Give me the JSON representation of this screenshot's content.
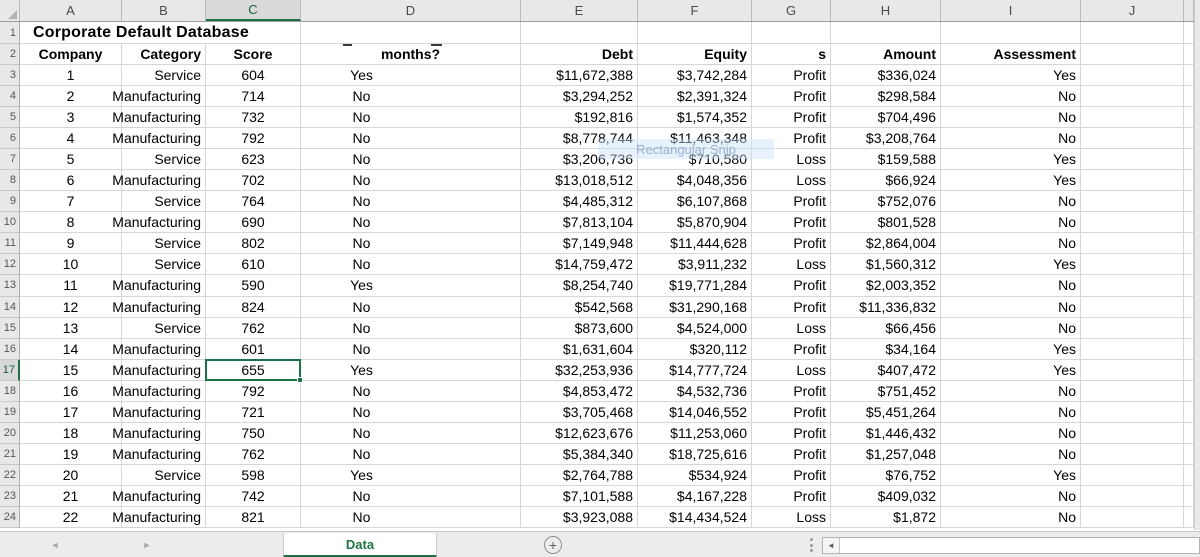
{
  "sheet_title": "Corporate Default Database",
  "column_letters": [
    "A",
    "B",
    "C",
    "D",
    "E",
    "F",
    "G",
    "H",
    "I",
    "J",
    ""
  ],
  "header_row": {
    "company": "Company",
    "category": "Category",
    "score": "Score",
    "months": "months?",
    "debt": "Debt",
    "equity": "Equity",
    "profit_loss": "s",
    "amount": "Amount",
    "assessment": "Assessment"
  },
  "rows": [
    {
      "company": "1",
      "category": "Service",
      "score": "604",
      "months": "Yes",
      "debt": "$11,672,388",
      "equity": "$3,742,284",
      "pl": "Profit",
      "amount": "$336,024",
      "assessment": "Yes"
    },
    {
      "company": "2",
      "category": "Manufacturing",
      "score": "714",
      "months": "No",
      "debt": "$3,294,252",
      "equity": "$2,391,324",
      "pl": "Profit",
      "amount": "$298,584",
      "assessment": "No"
    },
    {
      "company": "3",
      "category": "Manufacturing",
      "score": "732",
      "months": "No",
      "debt": "$192,816",
      "equity": "$1,574,352",
      "pl": "Profit",
      "amount": "$704,496",
      "assessment": "No"
    },
    {
      "company": "4",
      "category": "Manufacturing",
      "score": "792",
      "months": "No",
      "debt": "$8,778,744",
      "equity": "$11,463,348",
      "pl": "Profit",
      "amount": "$3,208,764",
      "assessment": "No"
    },
    {
      "company": "5",
      "category": "Service",
      "score": "623",
      "months": "No",
      "debt": "$3,206,736",
      "equity": "$710,580",
      "pl": "Loss",
      "amount": "$159,588",
      "assessment": "Yes"
    },
    {
      "company": "6",
      "category": "Manufacturing",
      "score": "702",
      "months": "No",
      "debt": "$13,018,512",
      "equity": "$4,048,356",
      "pl": "Loss",
      "amount": "$66,924",
      "assessment": "Yes"
    },
    {
      "company": "7",
      "category": "Service",
      "score": "764",
      "months": "No",
      "debt": "$4,485,312",
      "equity": "$6,107,868",
      "pl": "Profit",
      "amount": "$752,076",
      "assessment": "No"
    },
    {
      "company": "8",
      "category": "Manufacturing",
      "score": "690",
      "months": "No",
      "debt": "$7,813,104",
      "equity": "$5,870,904",
      "pl": "Profit",
      "amount": "$801,528",
      "assessment": "No"
    },
    {
      "company": "9",
      "category": "Service",
      "score": "802",
      "months": "No",
      "debt": "$7,149,948",
      "equity": "$11,444,628",
      "pl": "Profit",
      "amount": "$2,864,004",
      "assessment": "No"
    },
    {
      "company": "10",
      "category": "Service",
      "score": "610",
      "months": "No",
      "debt": "$14,759,472",
      "equity": "$3,911,232",
      "pl": "Loss",
      "amount": "$1,560,312",
      "assessment": "Yes"
    },
    {
      "company": "11",
      "category": "Manufacturing",
      "score": "590",
      "months": "Yes",
      "debt": "$8,254,740",
      "equity": "$19,771,284",
      "pl": "Profit",
      "amount": "$2,003,352",
      "assessment": "No"
    },
    {
      "company": "12",
      "category": "Manufacturing",
      "score": "824",
      "months": "No",
      "debt": "$542,568",
      "equity": "$31,290,168",
      "pl": "Profit",
      "amount": "$11,336,832",
      "assessment": "No"
    },
    {
      "company": "13",
      "category": "Service",
      "score": "762",
      "months": "No",
      "debt": "$873,600",
      "equity": "$4,524,000",
      "pl": "Loss",
      "amount": "$66,456",
      "assessment": "No"
    },
    {
      "company": "14",
      "category": "Manufacturing",
      "score": "601",
      "months": "No",
      "debt": "$1,631,604",
      "equity": "$320,112",
      "pl": "Profit",
      "amount": "$34,164",
      "assessment": "Yes"
    },
    {
      "company": "15",
      "category": "Manufacturing",
      "score": "655",
      "months": "Yes",
      "debt": "$32,253,936",
      "equity": "$14,777,724",
      "pl": "Loss",
      "amount": "$407,472",
      "assessment": "Yes"
    },
    {
      "company": "16",
      "category": "Manufacturing",
      "score": "792",
      "months": "No",
      "debt": "$4,853,472",
      "equity": "$4,532,736",
      "pl": "Profit",
      "amount": "$751,452",
      "assessment": "No"
    },
    {
      "company": "17",
      "category": "Manufacturing",
      "score": "721",
      "months": "No",
      "debt": "$3,705,468",
      "equity": "$14,046,552",
      "pl": "Profit",
      "amount": "$5,451,264",
      "assessment": "No"
    },
    {
      "company": "18",
      "category": "Manufacturing",
      "score": "750",
      "months": "No",
      "debt": "$12,623,676",
      "equity": "$11,253,060",
      "pl": "Profit",
      "amount": "$1,446,432",
      "assessment": "No"
    },
    {
      "company": "19",
      "category": "Manufacturing",
      "score": "762",
      "months": "No",
      "debt": "$5,384,340",
      "equity": "$18,725,616",
      "pl": "Profit",
      "amount": "$1,257,048",
      "assessment": "No"
    },
    {
      "company": "20",
      "category": "Service",
      "score": "598",
      "months": "Yes",
      "debt": "$2,764,788",
      "equity": "$534,924",
      "pl": "Profit",
      "amount": "$76,752",
      "assessment": "Yes"
    },
    {
      "company": "21",
      "category": "Manufacturing",
      "score": "742",
      "months": "No",
      "debt": "$7,101,588",
      "equity": "$4,167,228",
      "pl": "Profit",
      "amount": "$409,032",
      "assessment": "No"
    },
    {
      "company": "22",
      "category": "Manufacturing",
      "score": "821",
      "months": "No",
      "debt": "$3,923,088",
      "equity": "$14,434,524",
      "pl": "Loss",
      "amount": "$1,872",
      "assessment": "No"
    }
  ],
  "selection": {
    "cell_ref": "C17",
    "selected_row_number": 17,
    "selected_column_letter": "C"
  },
  "tabbar": {
    "sheet_name": "Data",
    "add_sheet_label": "+",
    "prev_arrow": "◄",
    "next_arrow": "►",
    "scroll_left_arrow": "◄"
  },
  "watermark_text": "Rectangular Snip",
  "colors": {
    "accent_green": "#217346",
    "header_bg": "#E8E8E8",
    "gridline": "#D6D6D6",
    "selected_header_bg": "#D9D9D9"
  }
}
